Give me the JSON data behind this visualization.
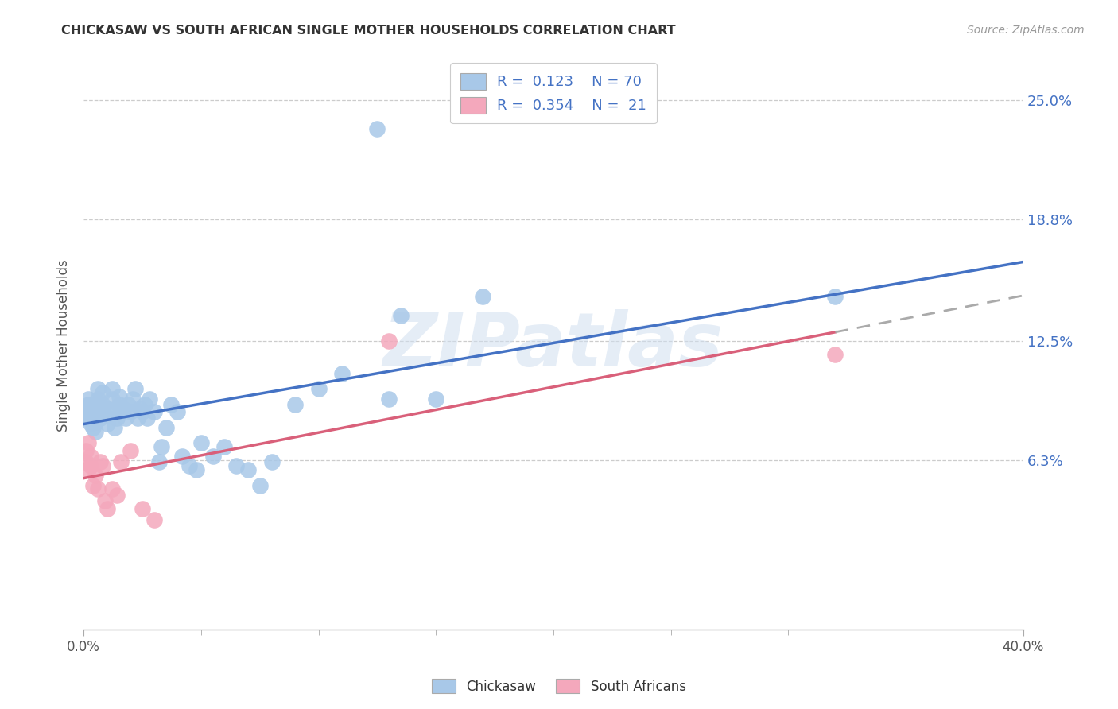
{
  "title": "CHICKASAW VS SOUTH AFRICAN SINGLE MOTHER HOUSEHOLDS CORRELATION CHART",
  "source": "Source: ZipAtlas.com",
  "ylabel": "Single Mother Households",
  "ytick_values": [
    0.063,
    0.125,
    0.188,
    0.25
  ],
  "ytick_labels": [
    "6.3%",
    "12.5%",
    "18.8%",
    "25.0%"
  ],
  "xlim": [
    0.0,
    0.4
  ],
  "ylim": [
    -0.025,
    0.27
  ],
  "watermark": "ZIPatlas",
  "chickasaw_color": "#a8c8e8",
  "sa_color": "#f4a8bc",
  "trendline_chickasaw_color": "#4472c4",
  "trendline_sa_color": "#d9607a",
  "trendline_sa_dashed_color": "#aaaaaa",
  "chick_x": [
    0.001,
    0.001,
    0.002,
    0.002,
    0.002,
    0.003,
    0.003,
    0.003,
    0.003,
    0.004,
    0.004,
    0.004,
    0.005,
    0.005,
    0.005,
    0.006,
    0.006,
    0.006,
    0.007,
    0.007,
    0.008,
    0.008,
    0.009,
    0.01,
    0.01,
    0.011,
    0.012,
    0.012,
    0.013,
    0.014,
    0.015,
    0.015,
    0.016,
    0.017,
    0.018,
    0.019,
    0.02,
    0.021,
    0.022,
    0.023,
    0.024,
    0.025,
    0.026,
    0.027,
    0.028,
    0.03,
    0.032,
    0.033,
    0.035,
    0.037,
    0.04,
    0.042,
    0.045,
    0.048,
    0.05,
    0.055,
    0.06,
    0.065,
    0.07,
    0.075,
    0.08,
    0.09,
    0.1,
    0.11,
    0.13,
    0.135,
    0.15,
    0.17,
    0.32,
    0.125
  ],
  "chick_y": [
    0.09,
    0.085,
    0.088,
    0.092,
    0.095,
    0.085,
    0.082,
    0.088,
    0.092,
    0.08,
    0.086,
    0.09,
    0.078,
    0.083,
    0.088,
    0.095,
    0.1,
    0.092,
    0.088,
    0.085,
    0.092,
    0.098,
    0.086,
    0.082,
    0.09,
    0.088,
    0.095,
    0.1,
    0.08,
    0.085,
    0.092,
    0.096,
    0.088,
    0.09,
    0.085,
    0.092,
    0.088,
    0.095,
    0.1,
    0.085,
    0.09,
    0.088,
    0.092,
    0.085,
    0.095,
    0.088,
    0.062,
    0.07,
    0.08,
    0.092,
    0.088,
    0.065,
    0.06,
    0.058,
    0.072,
    0.065,
    0.07,
    0.06,
    0.058,
    0.05,
    0.062,
    0.092,
    0.1,
    0.108,
    0.095,
    0.138,
    0.095,
    0.148,
    0.148,
    0.235
  ],
  "sa_x": [
    0.001,
    0.001,
    0.002,
    0.002,
    0.003,
    0.003,
    0.004,
    0.005,
    0.006,
    0.007,
    0.008,
    0.009,
    0.01,
    0.012,
    0.014,
    0.016,
    0.02,
    0.025,
    0.03,
    0.32,
    0.13
  ],
  "sa_y": [
    0.068,
    0.062,
    0.072,
    0.058,
    0.065,
    0.06,
    0.05,
    0.055,
    0.048,
    0.062,
    0.06,
    0.042,
    0.038,
    0.048,
    0.045,
    0.062,
    0.068,
    0.038,
    0.032,
    0.118,
    0.125
  ],
  "sa_trendline_solid_end": 0.32,
  "chick_trendline_start": 0.0,
  "chick_trendline_end": 0.4
}
